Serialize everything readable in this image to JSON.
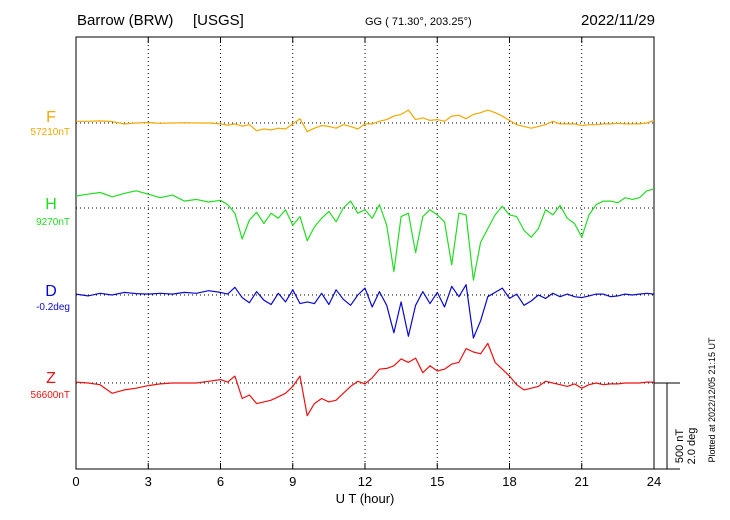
{
  "chart_data": {
    "type": "line",
    "station": "Barrow (BRW)",
    "source": "[USGS]",
    "coords_label": "GG ( 71.30°, 203.25°)",
    "date": "2022/11/29",
    "xlabel": "U T (hour)",
    "xlim": [
      0,
      24
    ],
    "x_ticks": [
      "0",
      "3",
      "6",
      "9",
      "12",
      "15",
      "18",
      "21",
      "24"
    ],
    "grid": true,
    "scale_label_1": "500 nT",
    "scale_label_2": "2.0 deg",
    "plotted_note": "Plotted at 2022/12/05 21:15 UT",
    "series": [
      {
        "name": "F",
        "baseline_label": "57210nT",
        "color": "#f5a800",
        "x": [
          0,
          0.5,
          1,
          1.5,
          2,
          2.5,
          3,
          3.5,
          4,
          4.5,
          5,
          5.5,
          6,
          6.3,
          6.6,
          6.9,
          7.2,
          7.5,
          7.8,
          8.1,
          8.4,
          8.7,
          9.0,
          9.3,
          9.6,
          9.9,
          10.2,
          10.5,
          10.8,
          11.1,
          11.4,
          11.7,
          12.0,
          12.3,
          12.6,
          12.9,
          13.2,
          13.5,
          13.8,
          14.1,
          14.4,
          14.7,
          15.0,
          15.3,
          15.6,
          15.9,
          16.2,
          16.5,
          16.8,
          17.1,
          17.4,
          17.7,
          18.0,
          18.3,
          18.6,
          18.9,
          19.2,
          19.5,
          19.8,
          20.1,
          20.4,
          20.7,
          21.0,
          21.3,
          21.6,
          21.9,
          22.2,
          22.5,
          22.8,
          23.1,
          23.4,
          23.7,
          24.0
        ],
        "y": [
          10,
          10,
          12,
          8,
          -5,
          0,
          3,
          -2,
          0,
          2,
          0,
          0,
          -5,
          -12,
          -5,
          -18,
          -10,
          -45,
          -35,
          -40,
          -30,
          -35,
          -5,
          25,
          -50,
          -30,
          -15,
          -20,
          -30,
          -10,
          -20,
          -35,
          -5,
          -5,
          10,
          20,
          40,
          50,
          75,
          20,
          30,
          15,
          20,
          10,
          40,
          45,
          25,
          50,
          60,
          75,
          60,
          40,
          15,
          -10,
          -20,
          -30,
          -20,
          -10,
          10,
          -5,
          -5,
          -5,
          -15,
          -10,
          -10,
          -5,
          -5,
          -2,
          -5,
          -5,
          -5,
          0,
          15
        ]
      },
      {
        "name": "H",
        "baseline_label": "9270nT",
        "color": "#22dd22",
        "x": [
          0,
          0.5,
          1,
          1.5,
          2,
          2.5,
          3,
          3.5,
          4,
          4.5,
          5,
          5.5,
          6,
          6.3,
          6.6,
          6.9,
          7.2,
          7.5,
          7.8,
          8.1,
          8.4,
          8.7,
          9.0,
          9.3,
          9.6,
          9.9,
          10.2,
          10.5,
          10.8,
          11.1,
          11.4,
          11.7,
          12.0,
          12.3,
          12.6,
          12.9,
          13.2,
          13.5,
          13.8,
          14.1,
          14.4,
          14.7,
          15.0,
          15.3,
          15.6,
          15.9,
          16.2,
          16.5,
          16.8,
          17.1,
          17.4,
          17.7,
          18.0,
          18.3,
          18.6,
          18.9,
          19.2,
          19.5,
          19.8,
          20.1,
          20.4,
          20.7,
          21.0,
          21.3,
          21.6,
          21.9,
          22.2,
          22.5,
          22.8,
          23.1,
          23.4,
          23.7,
          24.0
        ],
        "y": [
          70,
          80,
          90,
          65,
          85,
          100,
          80,
          60,
          75,
          40,
          50,
          35,
          45,
          20,
          -30,
          -180,
          -70,
          -25,
          -90,
          -30,
          -60,
          -10,
          -100,
          -50,
          -190,
          -110,
          -60,
          -20,
          -80,
          0,
          40,
          -30,
          -10,
          -60,
          20,
          -100,
          -370,
          -50,
          -30,
          -260,
          -50,
          -10,
          -40,
          -80,
          -330,
          -30,
          -40,
          -420,
          -200,
          -120,
          -40,
          10,
          -40,
          -50,
          -130,
          -170,
          -120,
          -10,
          -40,
          15,
          -60,
          -90,
          -170,
          -40,
          20,
          40,
          40,
          30,
          60,
          50,
          60,
          100,
          110
        ]
      },
      {
        "name": "D",
        "baseline_label": "-0.2deg",
        "color": "#0a0acc",
        "x": [
          0,
          0.5,
          1,
          1.5,
          2,
          2.5,
          3,
          3.5,
          4,
          4.5,
          5,
          5.5,
          6,
          6.3,
          6.6,
          6.9,
          7.2,
          7.5,
          7.8,
          8.1,
          8.4,
          8.7,
          9.0,
          9.3,
          9.6,
          9.9,
          10.2,
          10.5,
          10.8,
          11.1,
          11.4,
          11.7,
          12.0,
          12.3,
          12.6,
          12.9,
          13.2,
          13.5,
          13.8,
          14.1,
          14.4,
          14.7,
          15.0,
          15.3,
          15.6,
          15.9,
          16.2,
          16.5,
          16.8,
          17.1,
          17.4,
          17.7,
          18.0,
          18.3,
          18.6,
          18.9,
          19.2,
          19.5,
          19.8,
          20.1,
          20.4,
          20.7,
          21.0,
          21.3,
          21.6,
          21.9,
          22.2,
          22.5,
          22.8,
          23.1,
          23.4,
          23.7,
          24.0
        ],
        "y": [
          5,
          -5,
          10,
          0,
          15,
          8,
          5,
          10,
          5,
          15,
          10,
          25,
          15,
          5,
          45,
          -15,
          -45,
          20,
          -30,
          -55,
          10,
          -40,
          30,
          -50,
          -40,
          -50,
          10,
          -55,
          30,
          -25,
          -60,
          0,
          40,
          -70,
          20,
          -60,
          -220,
          -40,
          -240,
          -60,
          20,
          -50,
          15,
          -70,
          50,
          -10,
          60,
          -250,
          -150,
          -10,
          15,
          40,
          -20,
          5,
          -60,
          -35,
          0,
          -20,
          10,
          -10,
          5,
          -10,
          -15,
          -5,
          5,
          5,
          -10,
          -5,
          5,
          0,
          5,
          10,
          5
        ]
      },
      {
        "name": "Z",
        "baseline_label": "56600nT",
        "color": "#ee1111",
        "x": [
          0,
          0.5,
          1,
          1.5,
          2,
          2.5,
          3,
          3.5,
          4,
          4.5,
          5,
          5.5,
          6,
          6.3,
          6.6,
          6.9,
          7.2,
          7.5,
          7.8,
          8.1,
          8.4,
          8.7,
          9.0,
          9.3,
          9.6,
          9.9,
          10.2,
          10.5,
          10.8,
          11.1,
          11.4,
          11.7,
          12.0,
          12.3,
          12.6,
          12.9,
          13.2,
          13.5,
          13.8,
          14.1,
          14.4,
          14.7,
          15.0,
          15.3,
          15.6,
          15.9,
          16.2,
          16.5,
          16.8,
          17.1,
          17.4,
          17.7,
          18.0,
          18.3,
          18.6,
          18.9,
          19.2,
          19.5,
          19.8,
          20.1,
          20.4,
          20.7,
          21.0,
          21.3,
          21.6,
          21.9,
          22.2,
          22.5,
          22.8,
          23.1,
          23.4,
          23.7,
          24.0
        ],
        "y": [
          5,
          0,
          -10,
          -60,
          -40,
          -30,
          -15,
          -5,
          0,
          0,
          0,
          10,
          20,
          5,
          40,
          -90,
          -70,
          -120,
          -110,
          -100,
          -80,
          -60,
          -20,
          40,
          -190,
          -120,
          -90,
          -110,
          -100,
          -60,
          -20,
          10,
          -5,
          30,
          80,
          85,
          100,
          140,
          120,
          145,
          60,
          100,
          70,
          80,
          110,
          120,
          200,
          180,
          170,
          230,
          120,
          80,
          40,
          -10,
          -40,
          -30,
          -20,
          10,
          0,
          -10,
          -20,
          -5,
          -30,
          -10,
          0,
          -10,
          -5,
          -5,
          0,
          0,
          0,
          5,
          5
        ]
      }
    ]
  }
}
